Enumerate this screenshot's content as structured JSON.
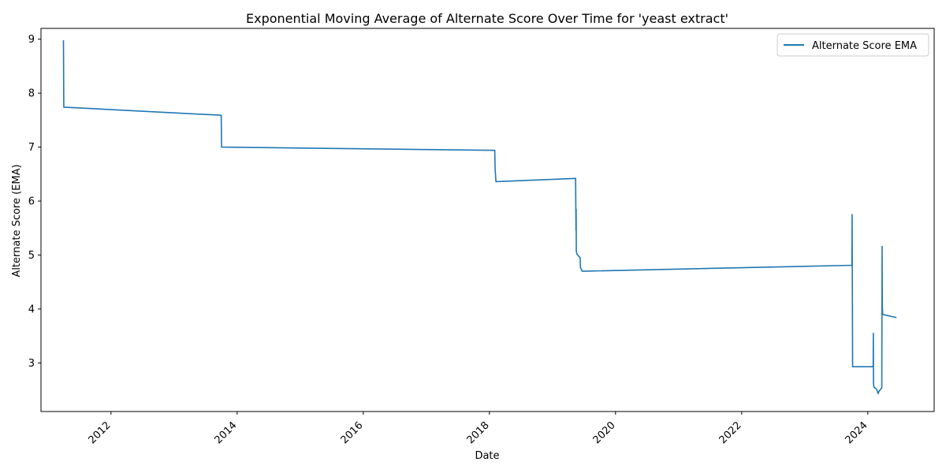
{
  "chart_data": {
    "type": "line",
    "title": "Exponential Moving Average of Alternate Score Over Time for 'yeast extract'",
    "xlabel": "Date",
    "ylabel": "Alternate Score (EMA)",
    "xlim": [
      "2010-11-22",
      "2025-01-20"
    ],
    "ylim": [
      2.1,
      9.2
    ],
    "x_ticks": [
      "2012",
      "2014",
      "2016",
      "2018",
      "2020",
      "2022",
      "2024"
    ],
    "y_ticks": [
      3,
      4,
      5,
      6,
      7,
      8,
      9
    ],
    "grid": false,
    "legend_position": "top-right",
    "series": [
      {
        "name": "Alternate Score EMA",
        "color": "#1f77b4",
        "x": [
          "2011-04-01",
          "2011-04-03",
          "2013-10-01",
          "2013-10-03",
          "2018-02-01",
          "2018-02-03",
          "2018-02-08",
          "2019-05-15",
          "2019-05-17",
          "2019-05-18",
          "2019-05-19",
          "2019-05-22",
          "2019-06-10",
          "2019-06-12",
          "2019-06-22",
          "2023-10-01",
          "2023-10-02",
          "2023-10-05",
          "2024-02-01",
          "2024-02-02",
          "2024-02-03",
          "2024-02-06",
          "2024-02-20",
          "2024-03-01",
          "2024-03-05",
          "2024-03-22",
          "2024-03-24",
          "2024-03-25",
          "2024-03-27",
          "2024-06-15"
        ],
        "values": [
          8.98,
          7.74,
          7.59,
          7.0,
          6.94,
          6.6,
          6.36,
          6.42,
          5.46,
          5.85,
          5.07,
          5.02,
          4.95,
          4.77,
          4.7,
          4.81,
          5.75,
          2.93,
          2.93,
          3.55,
          2.62,
          2.55,
          2.52,
          2.43,
          2.47,
          2.54,
          5.16,
          4.05,
          3.9,
          3.84
        ]
      }
    ]
  }
}
